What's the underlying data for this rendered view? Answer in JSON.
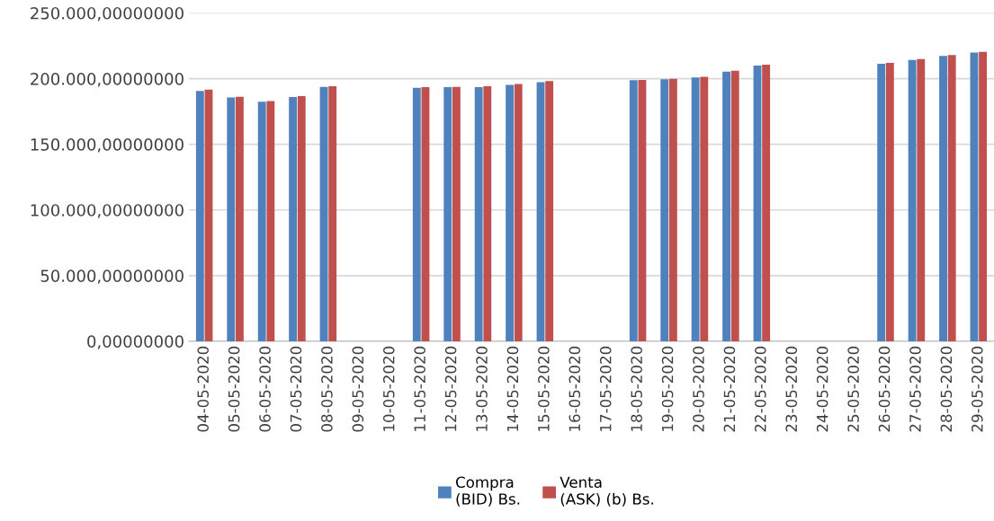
{
  "chart_data": {
    "type": "bar",
    "categories": [
      "04-05-2020",
      "05-05-2020",
      "06-05-2020",
      "07-05-2020",
      "08-05-2020",
      "09-05-2020",
      "10-05-2020",
      "11-05-2020",
      "12-05-2020",
      "13-05-2020",
      "14-05-2020",
      "15-05-2020",
      "16-05-2020",
      "17-05-2020",
      "18-05-2020",
      "19-05-2020",
      "20-05-2020",
      "21-05-2020",
      "22-05-2020",
      "23-05-2020",
      "24-05-2020",
      "25-05-2020",
      "26-05-2020",
      "27-05-2020",
      "28-05-2020",
      "29-05-2020"
    ],
    "series": [
      {
        "name": "Compra\n(BID) Bs.",
        "color": "#4f81bd",
        "values": [
          190700,
          185700,
          182500,
          186000,
          193700,
          null,
          null,
          193000,
          193500,
          193500,
          195300,
          197400,
          null,
          null,
          198800,
          199500,
          200900,
          205300,
          210000,
          null,
          null,
          null,
          211400,
          214200,
          217300,
          219900
        ]
      },
      {
        "name": "Venta\n(ASK) (b) Bs.",
        "color": "#c0504d",
        "values": [
          191600,
          186200,
          182900,
          186700,
          194200,
          null,
          null,
          193500,
          193700,
          194200,
          196000,
          198100,
          null,
          null,
          199100,
          199800,
          201400,
          206000,
          210700,
          null,
          null,
          null,
          212100,
          214900,
          218000,
          220400
        ]
      }
    ],
    "ylim": [
      0,
      250000
    ],
    "yticks": [
      {
        "value": 0,
        "label": "0,00000000"
      },
      {
        "value": 50000,
        "label": "50.000,00000000"
      },
      {
        "value": 100000,
        "label": "100.000,00000000"
      },
      {
        "value": 150000,
        "label": "150.000,00000000"
      },
      {
        "value": 200000,
        "label": "200.000,00000000"
      },
      {
        "value": 250000,
        "label": "250.000,00000000"
      }
    ],
    "grid": "y",
    "legend": "bottom"
  }
}
